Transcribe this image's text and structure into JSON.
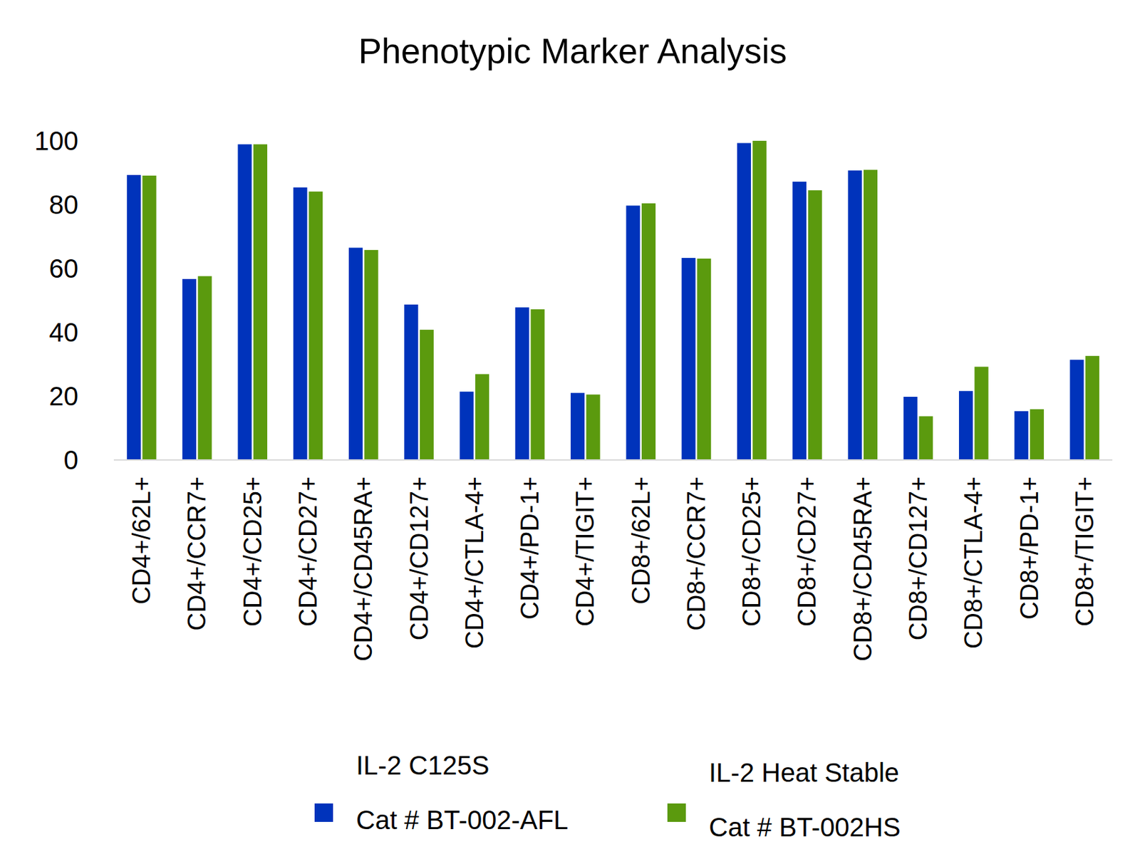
{
  "chart_data": {
    "type": "bar",
    "title": "Phenotypic Marker Analysis",
    "categories": [
      "CD4+/62L+",
      "CD4+/CCR7+",
      "CD4+/CD25+",
      "CD4+/CD27+",
      "CD4+/CD45RA+",
      "CD4+/CD127+",
      "CD4+/CTLA-4+",
      "CD4+/PD-1+",
      "CD4+/TIGIT+",
      "CD8+/62L+",
      "CD8+/CCR7+",
      "CD8+/CD25+",
      "CD8+/CD27+",
      "CD8+/CD45RA+",
      "CD8+/CD127+",
      "CD8+/CTLA-4+",
      "CD8+/PD-1+",
      "CD8+/TIGIT+"
    ],
    "series": [
      {
        "name": "IL-2 C125S",
        "catalog": "Cat # BT-002-AFL",
        "color": "#0033bb",
        "values": [
          89.3,
          56.7,
          98.9,
          85.4,
          66.5,
          48.7,
          21.4,
          47.8,
          21.0,
          79.7,
          63.3,
          99.3,
          87.2,
          90.7,
          19.8,
          21.6,
          15.3,
          31.4
        ]
      },
      {
        "name": "IL-2 Heat Stable",
        "catalog": "Cat # BT-002HS",
        "color": "#5b9a0e",
        "values": [
          89.1,
          57.6,
          98.9,
          84.1,
          65.8,
          40.8,
          26.9,
          47.2,
          20.5,
          80.4,
          63.1,
          100,
          84.5,
          90.9,
          13.7,
          29.2,
          15.9,
          32.6
        ]
      }
    ],
    "ylim": [
      0,
      100
    ],
    "yticks": [
      0,
      20,
      40,
      60,
      80,
      100
    ],
    "grid": false,
    "legend": "bottom"
  }
}
